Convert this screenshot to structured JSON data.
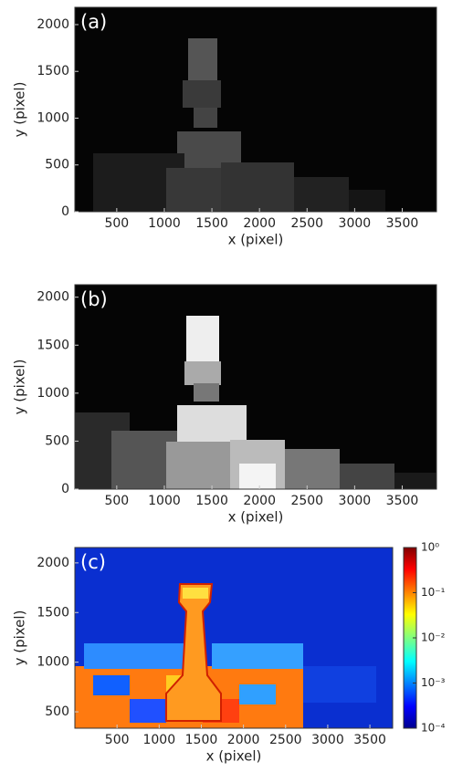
{
  "chart_data": [
    {
      "type": "image",
      "panel_label": "(a)",
      "xlabel": "x (pixel)",
      "ylabel": "y (pixel)",
      "xlim": [
        60,
        3860
      ],
      "ylim": [
        0,
        2185
      ],
      "xticks": [
        500,
        1000,
        1500,
        2000,
        2500,
        3000,
        3500
      ],
      "yticks": [
        0,
        500,
        1000,
        1500,
        2000
      ]
    },
    {
      "type": "image",
      "panel_label": "(b)",
      "xlabel": "x (pixel)",
      "ylabel": "y (pixel)",
      "xlim": [
        60,
        3860
      ],
      "ylim": [
        0,
        2130
      ],
      "xticks": [
        500,
        1000,
        1500,
        2000,
        2500,
        3000,
        3500
      ],
      "yticks": [
        0,
        500,
        1000,
        1500,
        2000
      ]
    },
    {
      "type": "image",
      "panel_label": "(c)",
      "xlabel": "x (pixel)",
      "ylabel": "y (pixel)",
      "xlim": [
        0,
        3770
      ],
      "ylim": [
        335,
        2155
      ],
      "xticks": [
        500,
        1000,
        1500,
        2000,
        2500,
        3000,
        3500
      ],
      "yticks": [
        500,
        1000,
        1500,
        2000
      ],
      "colorbar": {
        "scale": "log",
        "lim": [
          0.0001,
          1
        ],
        "ticks": [
          {
            "value": 1,
            "label": "10⁰"
          },
          {
            "value": 0.1,
            "label": "10⁻¹"
          },
          {
            "value": 0.01,
            "label": "10⁻²"
          },
          {
            "value": 0.001,
            "label": "10⁻³"
          },
          {
            "value": 0.0001,
            "label": "10⁻⁴"
          }
        ]
      }
    }
  ]
}
